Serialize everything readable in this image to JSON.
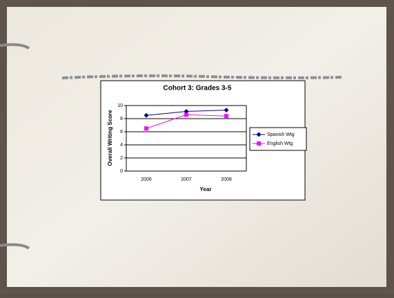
{
  "chart_data": {
    "type": "line",
    "title": "Cohort 3:  Grades 3-5",
    "x_label": "Year",
    "y_label": "Overall Writing Score",
    "categories": [
      "2006",
      "2007",
      "2008"
    ],
    "series": [
      {
        "name": "Spanish Wtg",
        "color": "#000080",
        "marker": "diamond",
        "values": [
          8.5,
          9.1,
          9.3
        ]
      },
      {
        "name": "English Wtg",
        "color": "#ff00ff",
        "marker": "square",
        "values": [
          6.5,
          8.6,
          8.4
        ]
      }
    ],
    "ylim": [
      0,
      10
    ],
    "yticks": [
      0,
      2,
      4,
      6,
      8,
      10
    ],
    "grid": true,
    "legend": "right"
  }
}
